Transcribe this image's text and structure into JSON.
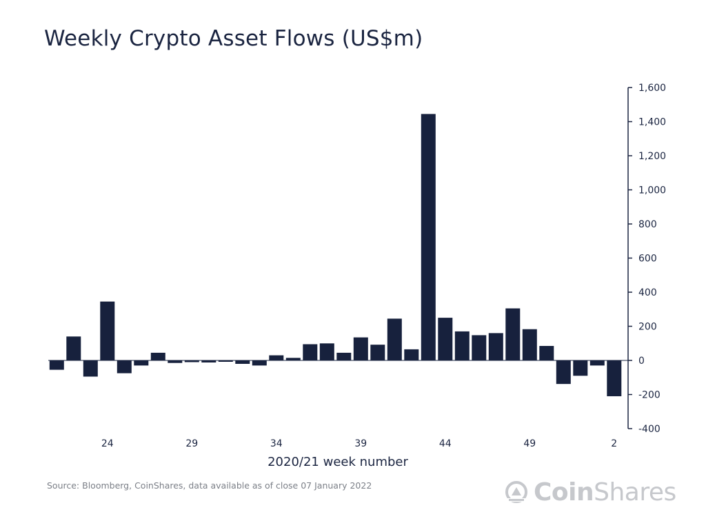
{
  "title": "Weekly Crypto Asset Flows (US$m)",
  "source": "Source: Bloomberg, CoinShares, data available as of close 07 January 2022",
  "logo": {
    "part1": "Coin",
    "part2": "Shares",
    "icon": "coinshares-logo-icon"
  },
  "colors": {
    "bar": "#17213d",
    "axis": "#1a2440",
    "text": "#1a2440",
    "logo": "#c6c8cc"
  },
  "chart_data": {
    "type": "bar",
    "xlabel": "2020/21 week number",
    "ylabel": "",
    "ylim": [
      -400,
      1600
    ],
    "yticks": [
      1600,
      1400,
      1200,
      1000,
      800,
      600,
      400,
      200,
      0,
      -200,
      -400
    ],
    "ytick_labels": [
      "1,600",
      "1,400",
      "1,200",
      "1,000",
      "800",
      "600",
      "400",
      "200",
      "0",
      "-200",
      "-400"
    ],
    "y_axis_position": "right",
    "grid": false,
    "x_tick_labels": [
      {
        "index": 3,
        "label": "24"
      },
      {
        "index": 8,
        "label": "29"
      },
      {
        "index": 13,
        "label": "34"
      },
      {
        "index": 18,
        "label": "39"
      },
      {
        "index": 23,
        "label": "44"
      },
      {
        "index": 28,
        "label": "49"
      },
      {
        "index": 33,
        "label": "2"
      }
    ],
    "values": [
      -55,
      140,
      -95,
      345,
      -75,
      -30,
      45,
      -15,
      -10,
      -12,
      -8,
      -20,
      -30,
      30,
      15,
      95,
      100,
      45,
      135,
      92,
      245,
      65,
      1445,
      250,
      170,
      148,
      160,
      305,
      183,
      85,
      -138,
      -90,
      -30,
      -210
    ]
  }
}
